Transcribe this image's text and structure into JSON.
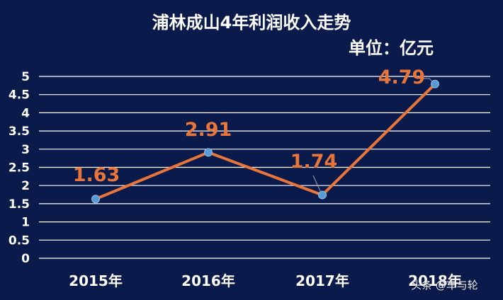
{
  "chart_data": {
    "type": "line",
    "title": "浦林成山4年利润收入走势",
    "subtitle": "单位：亿元",
    "categories": [
      "2015年",
      "2016年",
      "2017年",
      "2018年"
    ],
    "values": [
      1.63,
      2.91,
      1.74,
      4.79
    ],
    "data_labels": [
      "1.63",
      "2.91",
      "1.74",
      "4.79"
    ],
    "y_ticks": [
      "0",
      "0.5",
      "1",
      "1.5",
      "2",
      "2.5",
      "3",
      "3.5",
      "4",
      "4.5",
      "5"
    ],
    "ylim": [
      0,
      5
    ],
    "grid": true,
    "colors": {
      "background": "#0a1a4a",
      "line": "#e8763a",
      "marker": "#5b9bd5",
      "labels": "#e8763a",
      "grid": "#ffffff",
      "text": "#ffffff"
    }
  },
  "watermark": "头条 @车与轮"
}
